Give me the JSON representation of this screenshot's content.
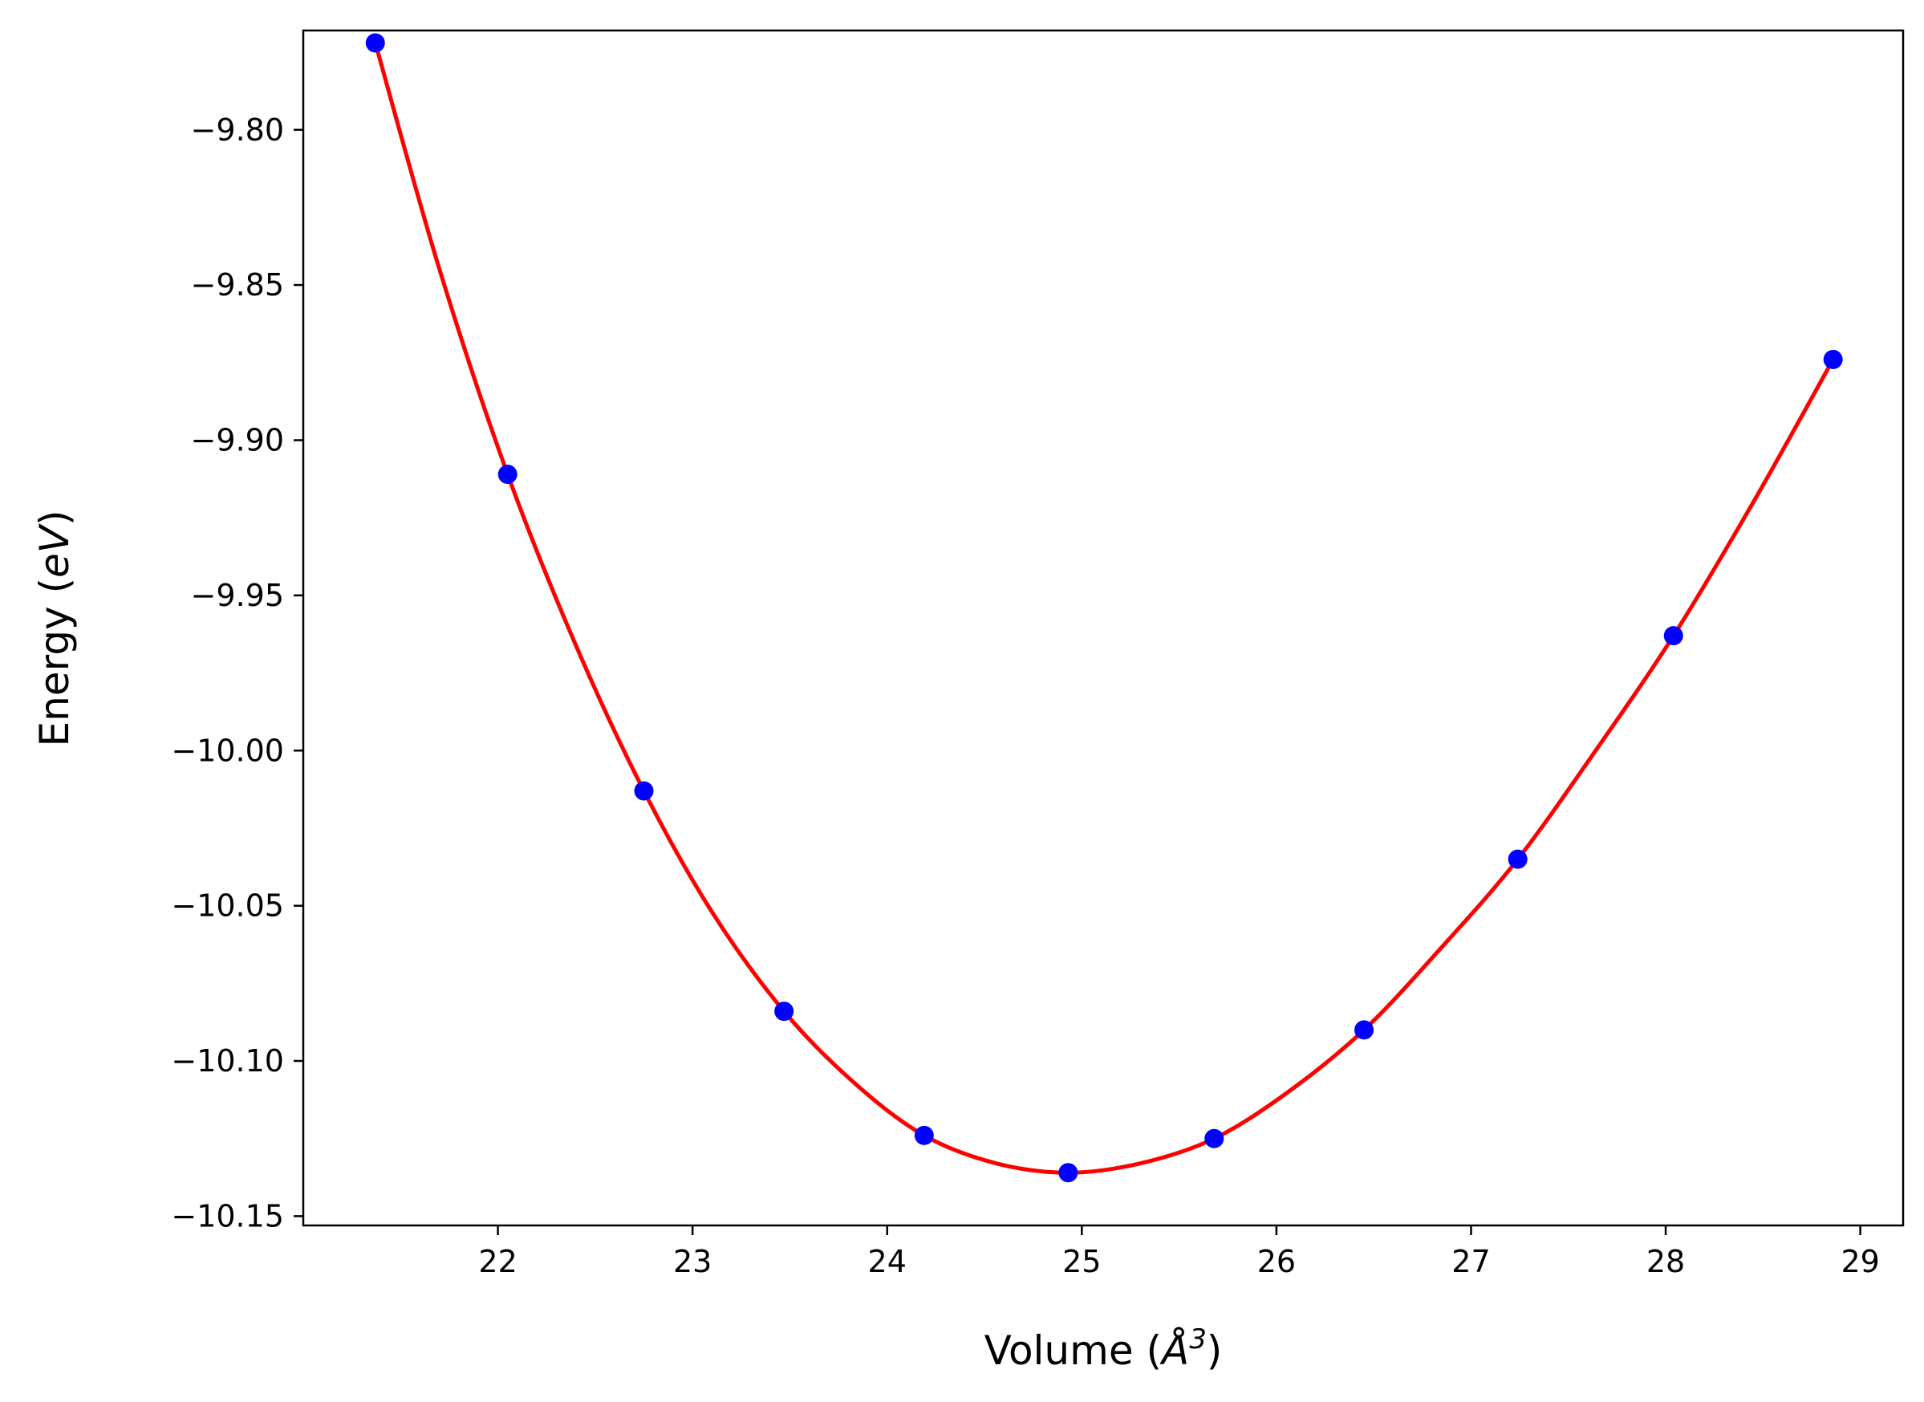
{
  "chart_data": {
    "type": "scatter",
    "xlabel_main": "Volume (",
    "xlabel_unit": "Å",
    "xlabel_exp": "3",
    "xlabel_close": ")",
    "ylabel_main": "Energy (",
    "ylabel_unit": "eV",
    "ylabel_close": ")",
    "xlim": [
      21.0,
      29.22
    ],
    "ylim": [
      -10.153,
      -9.768
    ],
    "xticks": [
      22,
      23,
      24,
      25,
      26,
      27,
      28,
      29
    ],
    "xtick_labels": [
      "22",
      "23",
      "24",
      "25",
      "26",
      "27",
      "28",
      "29"
    ],
    "yticks": [
      -9.8,
      -9.85,
      -9.9,
      -9.95,
      -10.0,
      -10.05,
      -10.1,
      -10.15
    ],
    "ytick_labels": [
      "−9.80",
      "−9.85",
      "−9.90",
      "−9.95",
      "−10.00",
      "−10.05",
      "−10.10",
      "−10.15"
    ],
    "grid": false,
    "series": [
      {
        "kind": "points",
        "color": "#0000ff",
        "x": [
          21.37,
          22.05,
          22.75,
          23.47,
          24.19,
          24.93,
          25.68,
          26.45,
          27.24,
          28.04,
          28.86
        ],
        "y": [
          -9.772,
          -9.911,
          -10.013,
          -10.084,
          -10.124,
          -10.136,
          -10.125,
          -10.09,
          -10.035,
          -9.963,
          -9.874
        ]
      },
      {
        "kind": "fit-curve",
        "color": "#ff0000",
        "x": [
          21.37,
          21.7,
          22.05,
          22.4,
          22.75,
          23.1,
          23.47,
          23.83,
          24.19,
          24.56,
          24.93,
          25.3,
          25.68,
          26.06,
          26.45,
          26.84,
          27.24,
          27.64,
          28.04,
          28.45,
          28.86
        ],
        "y": [
          -9.772,
          -9.845,
          -9.911,
          -9.966,
          -10.013,
          -10.052,
          -10.084,
          -10.107,
          -10.124,
          -10.133,
          -10.136,
          -10.133,
          -10.125,
          -10.11,
          -10.09,
          -10.064,
          -10.035,
          -10.0,
          -9.963,
          -9.92,
          -9.874
        ]
      }
    ]
  }
}
